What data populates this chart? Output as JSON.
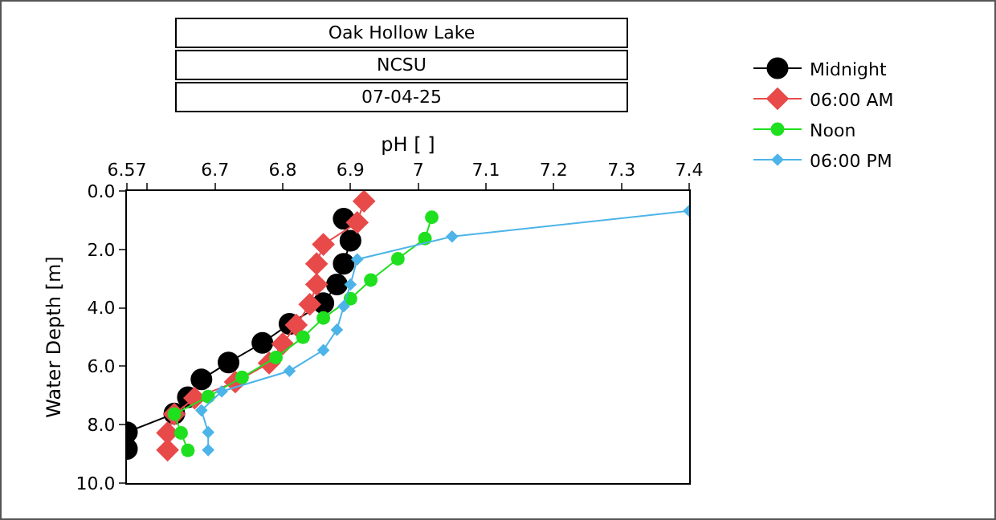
{
  "chart_data": {
    "type": "line",
    "title": "Oak Hollow Lake",
    "subtitle": "NCSU",
    "annotations": [
      "07-04-25"
    ],
    "xlabel": "pH [ ]",
    "ylabel": "Water Depth [m]",
    "xlim": [
      6.57,
      7.4
    ],
    "xticks": [
      6.57,
      {
        "value": 6.6,
        "label": null
      },
      6.7,
      6.8,
      6.9,
      7,
      7.1,
      7.2,
      7.3,
      7.4
    ],
    "ylim": [
      10,
      0
    ],
    "yticks": [
      {
        "value": 0,
        "label": "0.0"
      },
      {
        "value": 2,
        "label": "2.0"
      },
      {
        "value": 4,
        "label": "4.0"
      },
      {
        "value": 6,
        "label": "6.0"
      },
      {
        "value": 8,
        "label": "8.0"
      },
      {
        "value": 10,
        "label": "10.0"
      }
    ],
    "grid": false,
    "legend": "top right",
    "line_style": "solid",
    "series": [
      {
        "name": "Midnight",
        "color": "#000000",
        "marker": "circle",
        "x": [
          6.89,
          6.9,
          6.89,
          6.88,
          6.86,
          6.81,
          6.77,
          6.72,
          6.68,
          6.66,
          6.64,
          6.57,
          6.57
        ],
        "values": [
          0.95,
          1.7,
          2.49,
          3.2,
          3.84,
          4.55,
          5.2,
          5.87,
          6.45,
          7.06,
          7.62,
          8.26,
          8.83
        ]
      },
      {
        "name": "06:00 AM",
        "color": "#e84a4a",
        "marker": "diamond",
        "x": [
          6.92,
          6.91,
          6.86,
          6.85,
          6.85,
          6.84,
          6.82,
          6.8,
          6.78,
          6.73,
          6.67,
          6.64,
          6.63,
          6.63
        ],
        "values": [
          0.35,
          1.08,
          1.83,
          2.49,
          3.2,
          3.88,
          4.59,
          5.23,
          5.89,
          6.54,
          7.09,
          7.64,
          8.28,
          8.87
        ]
      },
      {
        "name": "Noon",
        "color": "#1ee01e",
        "marker": "circle",
        "x": [
          7.02,
          7.01,
          6.97,
          6.93,
          6.9,
          6.86,
          6.83,
          6.79,
          6.74,
          6.69,
          6.64,
          6.65,
          6.66
        ],
        "values": [
          0.9,
          1.63,
          2.32,
          3.05,
          3.69,
          4.35,
          5.01,
          5.7,
          6.38,
          7.04,
          7.64,
          8.28,
          8.88
        ]
      },
      {
        "name": "06:00 PM",
        "color": "#4cb4e8",
        "marker": "diamond",
        "x": [
          7.4,
          7.05,
          6.91,
          6.9,
          6.89,
          6.88,
          6.86,
          6.81,
          6.71,
          6.68,
          6.69,
          6.69
        ],
        "values": [
          0.68,
          1.56,
          2.34,
          3.2,
          3.95,
          4.75,
          5.45,
          6.16,
          6.86,
          7.51,
          8.26,
          8.87
        ]
      }
    ]
  }
}
